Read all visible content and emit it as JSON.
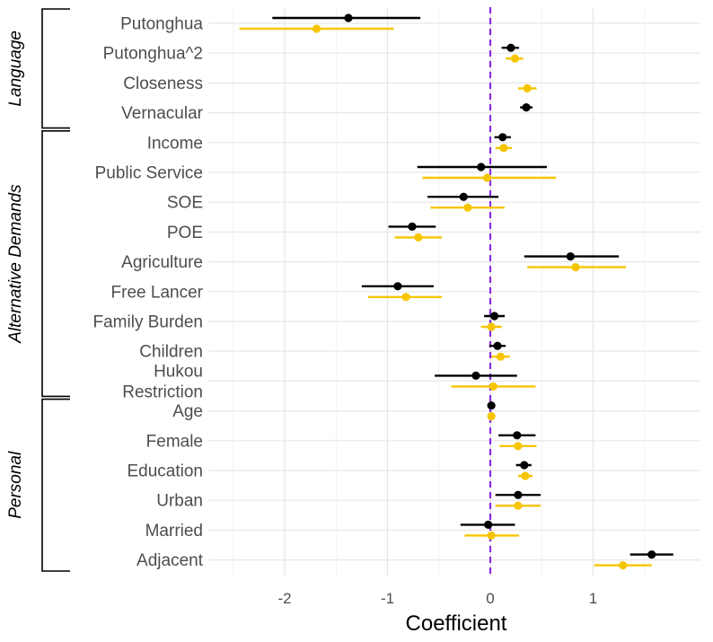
{
  "chart_data": {
    "type": "scatter",
    "subtype": "coefficient-plot",
    "xlabel": "Coefficient",
    "xlim": [
      -2.6,
      1.95
    ],
    "xticks": [
      -2,
      -1,
      0,
      1
    ],
    "grid": true,
    "reference_line": {
      "x": 0,
      "color": "#8a2be2",
      "style": "dashed"
    },
    "colors": {
      "series_1": "#000000",
      "series_2": "#f7c500"
    },
    "categories": [
      "Putonghua",
      "Putonghua^2",
      "Closeness",
      "Vernacular",
      "Income",
      "Public Service",
      "SOE",
      "POE",
      "Agriculture",
      "Free Lancer",
      "Family Burden",
      "Children",
      "Hukou Restriction",
      "Age",
      "Female",
      "Education",
      "Urban",
      "Married",
      "Adjacent"
    ],
    "groups": [
      {
        "label": "Language",
        "from": 0,
        "to": 3
      },
      {
        "label": "Alternative Demands",
        "from": 4,
        "to": 12
      },
      {
        "label": "Personal",
        "from": 13,
        "to": 18
      }
    ],
    "series": [
      {
        "color": "#000000",
        "estimates": [
          -1.38,
          0.2,
          null,
          0.35,
          0.12,
          -0.09,
          -0.26,
          -0.76,
          0.78,
          -0.9,
          0.04,
          0.07,
          -0.14,
          0.01,
          0.26,
          0.33,
          0.27,
          -0.02,
          1.57
        ],
        "lower": [
          -2.12,
          0.11,
          null,
          0.29,
          0.04,
          -0.71,
          -0.61,
          -0.99,
          0.33,
          -1.25,
          -0.06,
          -0.01,
          -0.54,
          0.0,
          0.08,
          0.25,
          0.05,
          -0.29,
          1.36
        ],
        "upper": [
          -0.68,
          0.28,
          null,
          0.41,
          0.2,
          0.55,
          0.08,
          -0.53,
          1.25,
          -0.55,
          0.14,
          0.15,
          0.26,
          0.02,
          0.44,
          0.4,
          0.49,
          0.24,
          1.78
        ]
      },
      {
        "color": "#f7c500",
        "estimates": [
          -1.69,
          0.24,
          0.36,
          null,
          0.13,
          -0.03,
          -0.22,
          -0.7,
          0.83,
          -0.82,
          0.01,
          0.1,
          0.03,
          0.01,
          0.27,
          0.34,
          0.27,
          0.01,
          1.29
        ],
        "lower": [
          -2.44,
          0.15,
          0.27,
          null,
          0.05,
          -0.66,
          -0.58,
          -0.93,
          0.36,
          -1.19,
          -0.09,
          0.01,
          -0.38,
          0.0,
          0.09,
          0.27,
          0.05,
          -0.25,
          1.01
        ],
        "upper": [
          -0.94,
          0.32,
          0.45,
          null,
          0.21,
          0.64,
          0.14,
          -0.47,
          1.32,
          -0.47,
          0.11,
          0.19,
          0.44,
          0.02,
          0.45,
          0.41,
          0.49,
          0.28,
          1.57
        ]
      }
    ]
  }
}
